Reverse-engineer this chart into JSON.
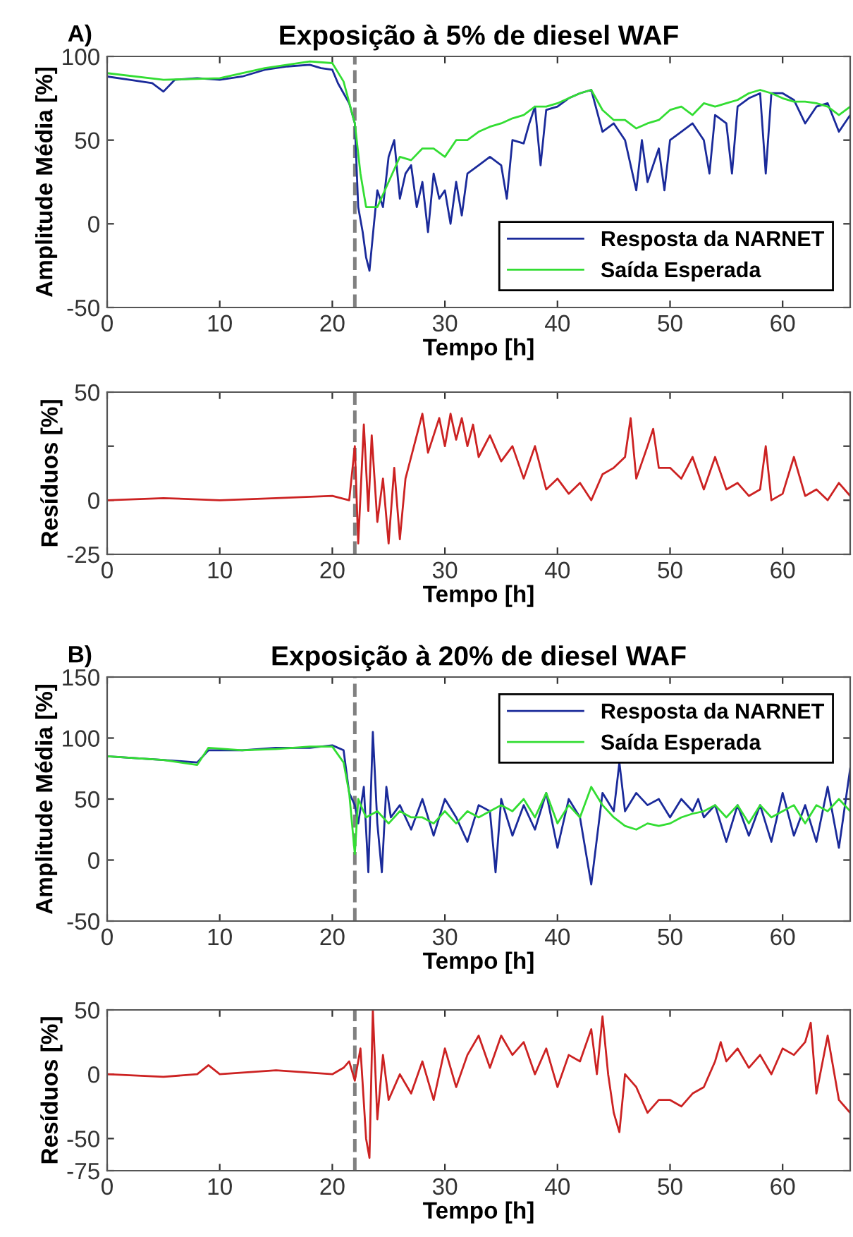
{
  "chart_data": [
    {
      "type": "line",
      "title": "Exposição à 5% de diesel WAF",
      "xlabel": "Tempo [h]",
      "ylabel": "Amplitude Média [%]",
      "annotations": [
        "A)"
      ],
      "xlim": [
        0,
        66
      ],
      "xticks": [
        0,
        10,
        20,
        30,
        40,
        50,
        60
      ],
      "ylim": [
        -50,
        100
      ],
      "yticks": [
        -50,
        0,
        50,
        100
      ],
      "legend": "lower right",
      "grid": false,
      "ref_lines": [
        {
          "axis": "x",
          "value": 22,
          "color": "#808080",
          "line_style": "dashed"
        }
      ],
      "series": [
        {
          "name": "Resposta da NARNET",
          "color": "#1a2a9a",
          "x": [
            0,
            2,
            4,
            5,
            6,
            8,
            10,
            12,
            14,
            16,
            18,
            19,
            20,
            20.5,
            21,
            21.5,
            22,
            22.3,
            22.7,
            23,
            23.3,
            23.7,
            24,
            24.5,
            25,
            25.5,
            26,
            26.5,
            27,
            27.5,
            28,
            28.5,
            29,
            29.5,
            30,
            30.5,
            31,
            31.5,
            32,
            33,
            34,
            35,
            35.5,
            36,
            37,
            37.5,
            38,
            38.5,
            39,
            40,
            41,
            42,
            43,
            44,
            45,
            46,
            47,
            47.5,
            48,
            49,
            49.5,
            50,
            51,
            52,
            53,
            53.5,
            54,
            55,
            55.5,
            56,
            57,
            58,
            58.5,
            59,
            60,
            61,
            62,
            63,
            64,
            65,
            66
          ],
          "values": [
            88,
            86,
            84,
            79,
            86,
            87,
            86,
            88,
            92,
            94,
            95,
            93,
            92,
            84,
            78,
            72,
            60,
            10,
            -5,
            -20,
            -28,
            0,
            20,
            10,
            40,
            50,
            15,
            30,
            35,
            10,
            25,
            -5,
            30,
            15,
            20,
            0,
            25,
            5,
            30,
            35,
            40,
            35,
            15,
            50,
            48,
            60,
            70,
            35,
            68,
            70,
            75,
            78,
            80,
            55,
            60,
            50,
            20,
            50,
            25,
            45,
            20,
            50,
            55,
            60,
            50,
            30,
            65,
            60,
            30,
            70,
            75,
            78,
            30,
            78,
            78,
            74,
            60,
            70,
            72,
            55,
            65
          ]
        },
        {
          "name": "Saída Esperada",
          "color": "#33dd33",
          "x": [
            0,
            5,
            10,
            14,
            18,
            20,
            21,
            22,
            22.5,
            23,
            24,
            25,
            26,
            27,
            28,
            29,
            30,
            31,
            32,
            33,
            34,
            35,
            36,
            37,
            38,
            39,
            40,
            41,
            42,
            43,
            44,
            45,
            46,
            47,
            48,
            49,
            50,
            51,
            52,
            53,
            54,
            55,
            56,
            57,
            58,
            59,
            60,
            61,
            62,
            63,
            64,
            65,
            66
          ],
          "values": [
            90,
            86,
            87,
            93,
            97,
            96,
            85,
            60,
            30,
            10,
            10,
            25,
            40,
            38,
            45,
            45,
            40,
            50,
            50,
            55,
            58,
            60,
            63,
            65,
            70,
            70,
            72,
            75,
            78,
            80,
            68,
            62,
            62,
            57,
            60,
            62,
            68,
            70,
            65,
            72,
            70,
            72,
            74,
            78,
            80,
            78,
            75,
            73,
            73,
            72,
            70,
            65,
            70
          ]
        }
      ]
    },
    {
      "type": "line",
      "xlabel": "Tempo [h]",
      "ylabel": "Resíduos [%]",
      "xlim": [
        0,
        66
      ],
      "xticks": [
        0,
        10,
        20,
        30,
        40,
        50,
        60
      ],
      "ylim": [
        -25,
        50
      ],
      "yticks": [
        -25,
        0,
        {
          "value": 25,
          "label": null
        },
        50
      ],
      "grid": false,
      "ref_lines": [
        {
          "axis": "x",
          "value": 22,
          "color": "#808080",
          "line_style": "dashed"
        }
      ],
      "series": [
        {
          "color": "#cc2222",
          "x": [
            0,
            5,
            10,
            15,
            20,
            21.5,
            22,
            22.3,
            22.8,
            23.2,
            23.5,
            24,
            24.5,
            25,
            25.5,
            26,
            26.5,
            27,
            27.5,
            28,
            28.5,
            29,
            29.5,
            30,
            30.5,
            31,
            31.5,
            32,
            32.5,
            33,
            34,
            35,
            36,
            37,
            38,
            39,
            40,
            41,
            42,
            43,
            44,
            45,
            46,
            46.5,
            47,
            48,
            48.5,
            49,
            50,
            51,
            52,
            53,
            54,
            55,
            56,
            57,
            58,
            58.5,
            59,
            60,
            61,
            62,
            63,
            64,
            65,
            66
          ],
          "values": [
            0,
            1,
            0,
            1,
            2,
            0,
            25,
            -20,
            35,
            -5,
            30,
            -10,
            10,
            -20,
            15,
            -18,
            10,
            20,
            30,
            40,
            22,
            30,
            38,
            25,
            40,
            28,
            38,
            25,
            35,
            20,
            30,
            18,
            25,
            10,
            25,
            5,
            10,
            3,
            8,
            0,
            12,
            15,
            20,
            38,
            10,
            25,
            33,
            15,
            15,
            10,
            20,
            5,
            20,
            5,
            8,
            2,
            5,
            25,
            0,
            3,
            20,
            2,
            5,
            0,
            8,
            2
          ]
        }
      ]
    },
    {
      "type": "line",
      "title": "Exposição à 20% de diesel WAF",
      "xlabel": "Tempo [h]",
      "ylabel": "Amplitude Média [%]",
      "annotations": [
        "B)"
      ],
      "xlim": [
        0,
        66
      ],
      "xticks": [
        0,
        10,
        20,
        30,
        40,
        50,
        60
      ],
      "ylim": [
        -50,
        150
      ],
      "yticks": [
        -50,
        0,
        50,
        100,
        150
      ],
      "legend": "upper right",
      "grid": false,
      "ref_lines": [
        {
          "axis": "x",
          "value": 22,
          "color": "#808080",
          "line_style": "dashed"
        }
      ],
      "series": [
        {
          "name": "Resposta da NARNET",
          "color": "#1a2a9a",
          "x": [
            0,
            5,
            8,
            9,
            12,
            15,
            18,
            20,
            21,
            21.5,
            22,
            22.3,
            22.8,
            23.2,
            23.6,
            24,
            24.4,
            24.8,
            25.2,
            26,
            27,
            28,
            29,
            30,
            31,
            32,
            33,
            34,
            34.5,
            35,
            36,
            37,
            38,
            39,
            40,
            41,
            42,
            43,
            44,
            45,
            45.5,
            46,
            47,
            48,
            49,
            50,
            51,
            52,
            52.5,
            53,
            54,
            55,
            56,
            57,
            58,
            59,
            60,
            61,
            62,
            63,
            64,
            65,
            66
          ],
          "values": [
            85,
            82,
            80,
            90,
            90,
            92,
            92,
            94,
            90,
            55,
            45,
            30,
            60,
            -10,
            105,
            30,
            -10,
            60,
            35,
            45,
            25,
            50,
            20,
            50,
            35,
            15,
            45,
            40,
            -10,
            50,
            20,
            45,
            25,
            55,
            10,
            50,
            35,
            -20,
            55,
            40,
            80,
            40,
            55,
            45,
            50,
            35,
            50,
            40,
            50,
            35,
            45,
            15,
            45,
            20,
            45,
            15,
            55,
            20,
            45,
            15,
            60,
            10,
            75
          ]
        },
        {
          "name": "Saída Esperada",
          "color": "#33dd33",
          "x": [
            0,
            5,
            8,
            9,
            12,
            15,
            18,
            20,
            21,
            21.5,
            22,
            22.3,
            23,
            24,
            25,
            26,
            27,
            28,
            29,
            30,
            31,
            32,
            33,
            34,
            35,
            36,
            37,
            38,
            39,
            40,
            41,
            42,
            43,
            44,
            45,
            46,
            47,
            48,
            49,
            50,
            51,
            52,
            53,
            54,
            55,
            56,
            57,
            58,
            59,
            60,
            61,
            62,
            63,
            64,
            65,
            66
          ],
          "values": [
            85,
            82,
            78,
            92,
            90,
            91,
            93,
            93,
            80,
            55,
            5,
            50,
            35,
            40,
            30,
            40,
            35,
            35,
            30,
            40,
            30,
            40,
            35,
            40,
            45,
            40,
            50,
            35,
            55,
            30,
            45,
            35,
            60,
            45,
            35,
            28,
            25,
            30,
            28,
            30,
            35,
            38,
            40,
            45,
            35,
            45,
            30,
            45,
            35,
            40,
            45,
            30,
            45,
            40,
            50,
            40
          ]
        }
      ]
    },
    {
      "type": "line",
      "xlabel": "Tempo [h]",
      "ylabel": "Resíduos [%]",
      "xlim": [
        0,
        66
      ],
      "xticks": [
        0,
        10,
        20,
        30,
        40,
        50,
        60
      ],
      "ylim": [
        -75,
        50
      ],
      "yticks": [
        -75,
        -50,
        0,
        50
      ],
      "grid": false,
      "ref_lines": [
        {
          "axis": "x",
          "value": 22,
          "color": "#808080",
          "line_style": "dashed"
        }
      ],
      "series": [
        {
          "color": "#cc2222",
          "x": [
            0,
            5,
            8,
            9,
            10,
            15,
            20,
            21,
            21.5,
            22,
            22.5,
            23,
            23.3,
            23.6,
            24,
            24.5,
            25,
            26,
            27,
            28,
            29,
            30,
            31,
            32,
            33,
            34,
            35,
            36,
            37,
            38,
            39,
            40,
            41,
            42,
            43,
            43.5,
            44,
            44.5,
            45,
            45.5,
            46,
            47,
            48,
            49,
            50,
            51,
            52,
            53,
            54,
            54.5,
            55,
            56,
            57,
            58,
            59,
            60,
            61,
            62,
            62.5,
            63,
            64,
            65,
            66
          ],
          "values": [
            0,
            -2,
            0,
            7,
            0,
            3,
            0,
            5,
            10,
            -5,
            20,
            -50,
            -65,
            50,
            -35,
            15,
            -20,
            0,
            -15,
            10,
            -20,
            20,
            -10,
            15,
            30,
            5,
            30,
            15,
            25,
            0,
            20,
            -10,
            15,
            10,
            35,
            0,
            45,
            0,
            -30,
            -45,
            0,
            -10,
            -30,
            -20,
            -20,
            -25,
            -15,
            -10,
            10,
            25,
            10,
            20,
            5,
            15,
            0,
            20,
            15,
            25,
            40,
            -15,
            30,
            -20,
            -30
          ]
        }
      ]
    }
  ]
}
